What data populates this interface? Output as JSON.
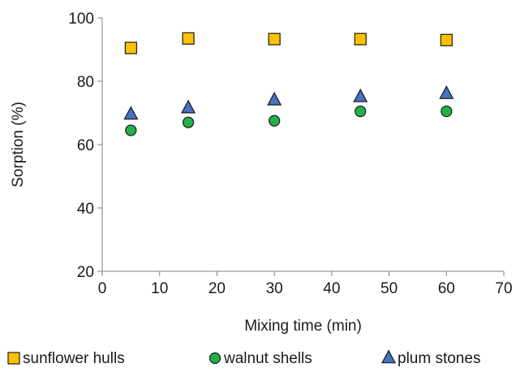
{
  "chart_data": {
    "type": "scatter",
    "title": "",
    "xlabel": "Mixing time (min)",
    "ylabel": "Sorption (%)",
    "xlim": [
      0,
      70
    ],
    "ylim": [
      20,
      100
    ],
    "x_ticks": [
      0,
      10,
      20,
      30,
      40,
      50,
      60,
      70
    ],
    "y_ticks": [
      20,
      40,
      60,
      80,
      100
    ],
    "grid": false,
    "legend_position": "bottom",
    "series": [
      {
        "name": "sunflower hulls",
        "marker": "square",
        "color": "#FFC000",
        "x": [
          5,
          15,
          30,
          45,
          60
        ],
        "y": [
          90.5,
          93.5,
          93.3,
          93.3,
          93.0
        ]
      },
      {
        "name": "walnut shells",
        "marker": "circle",
        "color": "#22B14C",
        "x": [
          5,
          15,
          30,
          45,
          60
        ],
        "y": [
          64.5,
          67.0,
          67.5,
          70.5,
          70.5
        ]
      },
      {
        "name": "plum stones",
        "marker": "triangle",
        "color": "#4472C4",
        "x": [
          5,
          15,
          30,
          45,
          60
        ],
        "y": [
          69.5,
          71.5,
          74.0,
          75.0,
          76.0
        ]
      }
    ]
  }
}
